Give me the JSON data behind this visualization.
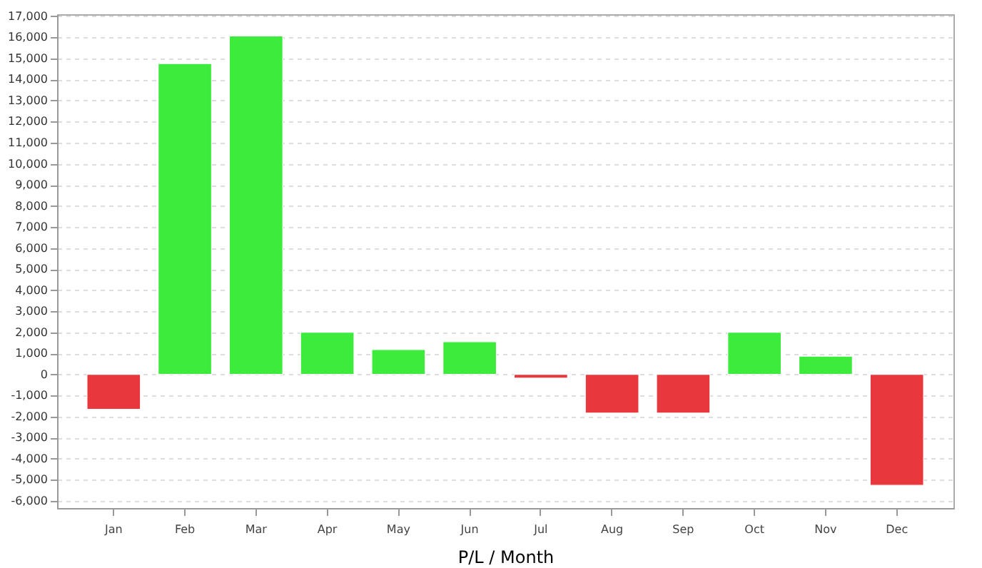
{
  "chart_data": {
    "type": "bar",
    "xlabel": "P/L / Month",
    "categories": [
      "Jan",
      "Feb",
      "Mar",
      "Apr",
      "May",
      "Jun",
      "Jul",
      "Aug",
      "Sep",
      "Oct",
      "Nov",
      "Dec"
    ],
    "values": [
      -1660,
      14760,
      16070,
      2000,
      1180,
      1550,
      -180,
      -1840,
      -1840,
      2000,
      860,
      -5270
    ],
    "colors": [
      "#e8383d",
      "#3deb3d",
      "#3deb3d",
      "#3deb3d",
      "#3deb3d",
      "#3deb3d",
      "#e8383d",
      "#e8383d",
      "#e8383d",
      "#3deb3d",
      "#3deb3d",
      "#e8383d"
    ],
    "ylim": [
      -6350,
      17100
    ],
    "yticks": [
      {
        "value": -6000,
        "label": "-6,000"
      },
      {
        "value": -5000,
        "label": "-5,000"
      },
      {
        "value": -4000,
        "label": "-4,000"
      },
      {
        "value": -3000,
        "label": "-3,000"
      },
      {
        "value": -2000,
        "label": "-2,000"
      },
      {
        "value": -1000,
        "label": "-1,000"
      },
      0,
      {
        "value": 1000,
        "label": "1,000"
      },
      {
        "value": 2000,
        "label": "2,000"
      },
      {
        "value": 3000,
        "label": "3,000"
      },
      {
        "value": 4000,
        "label": "4,000"
      },
      {
        "value": 5000,
        "label": "5,000"
      },
      {
        "value": 6000,
        "label": "6,000"
      },
      {
        "value": 7000,
        "label": "7,000"
      },
      {
        "value": 8000,
        "label": "8,000"
      },
      {
        "value": 9000,
        "label": "9,000"
      },
      {
        "value": 10000,
        "label": "10,000"
      },
      {
        "value": 11000,
        "label": "11,000"
      },
      {
        "value": 12000,
        "label": "12,000"
      },
      {
        "value": 13000,
        "label": "13,000"
      },
      {
        "value": 14000,
        "label": "14,000"
      },
      {
        "value": 15000,
        "label": "15,000"
      },
      {
        "value": 16000,
        "label": "16,000"
      },
      {
        "value": 17000,
        "label": "17,000"
      }
    ],
    "grid": "y"
  }
}
